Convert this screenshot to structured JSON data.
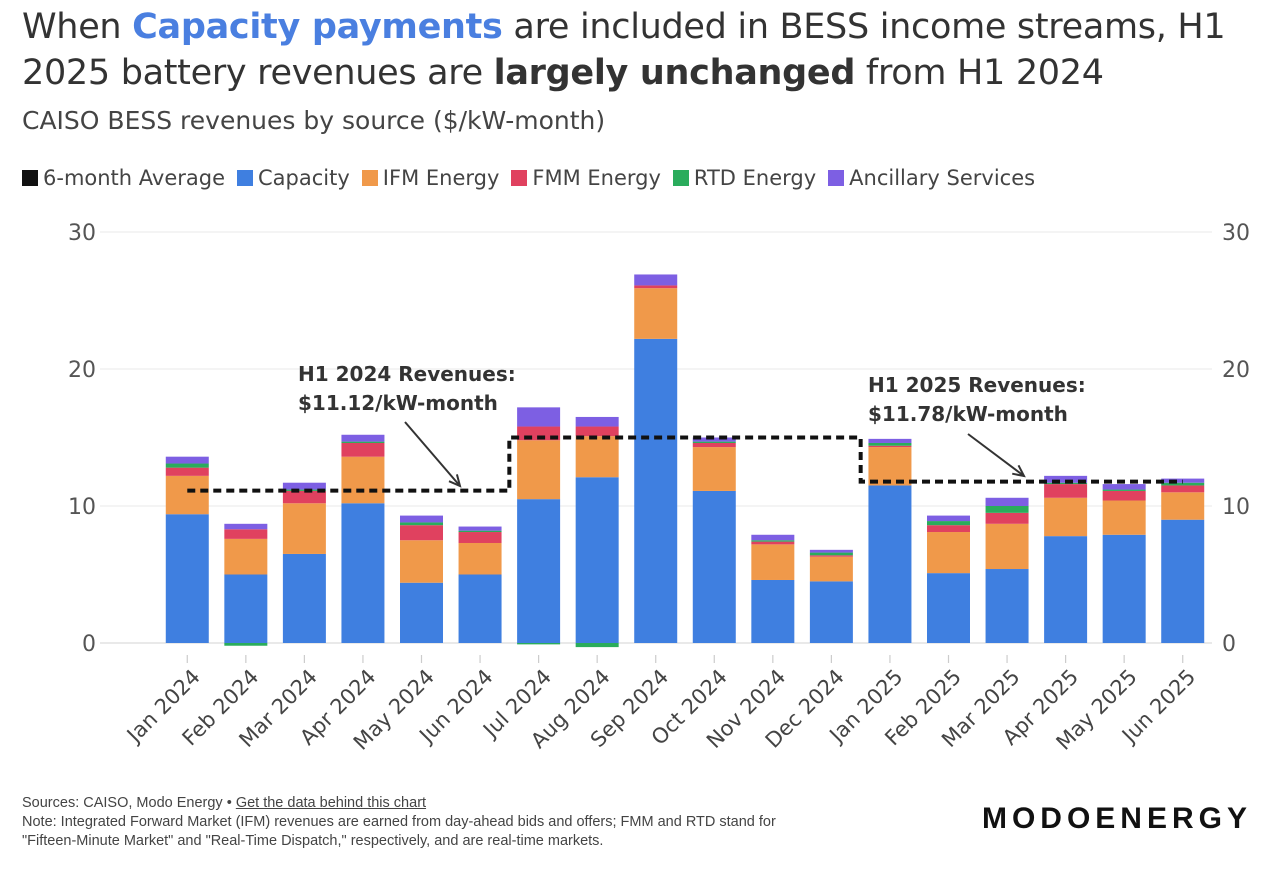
{
  "header": {
    "title_parts": {
      "p1": "When ",
      "p2": "Capacity payments",
      "p3": " are included in BESS income streams, H1 2025 battery revenues are ",
      "p4": "largely unchanged",
      "p5": " from H1 2024"
    },
    "subtitle": "CAISO BESS revenues by source ($/kW-month)"
  },
  "legend": [
    {
      "label": "6-month Average",
      "color": "#111111"
    },
    {
      "label": "Capacity",
      "color": "#3f7fe0"
    },
    {
      "label": "IFM Energy",
      "color": "#f0994a"
    },
    {
      "label": "FMM Energy",
      "color": "#e0415f"
    },
    {
      "label": "RTD Energy",
      "color": "#2aac5c"
    },
    {
      "label": "Ancillary Services",
      "color": "#7d5fe3"
    }
  ],
  "chart_data": {
    "type": "bar",
    "stacked": true,
    "categories": [
      "Jan 2024",
      "Feb 2024",
      "Mar 2024",
      "Apr 2024",
      "May 2024",
      "Jun 2024",
      "Jul 2024",
      "Aug 2024",
      "Sep 2024",
      "Oct 2024",
      "Nov 2024",
      "Dec 2024",
      "Jan 2025",
      "Feb 2025",
      "Mar 2025",
      "Apr 2025",
      "May 2025",
      "Jun 2025"
    ],
    "series": [
      {
        "name": "Capacity",
        "color": "#3f7fe0",
        "values": [
          9.4,
          5.0,
          6.5,
          10.2,
          4.4,
          5.0,
          10.5,
          12.1,
          22.2,
          11.1,
          4.6,
          4.5,
          11.5,
          5.1,
          5.4,
          7.8,
          7.9,
          9.0
        ]
      },
      {
        "name": "IFM Energy",
        "color": "#f0994a",
        "values": [
          2.8,
          2.6,
          3.7,
          3.4,
          3.1,
          2.3,
          4.3,
          3.0,
          3.7,
          3.2,
          2.6,
          1.8,
          2.8,
          3.0,
          3.3,
          2.8,
          2.5,
          2.0
        ]
      },
      {
        "name": "FMM Energy",
        "color": "#e0415f",
        "values": [
          0.6,
          0.7,
          0.9,
          1.0,
          1.1,
          0.8,
          1.0,
          0.7,
          0.2,
          0.3,
          0.2,
          0.1,
          0.1,
          0.5,
          0.8,
          1.0,
          0.7,
          0.5
        ]
      },
      {
        "name": "RTD Energy",
        "color": "#2aac5c",
        "values": [
          0.3,
          -0.2,
          0.1,
          0.1,
          0.2,
          0.1,
          -0.1,
          -0.3,
          0.0,
          0.1,
          0.1,
          0.2,
          0.2,
          0.3,
          0.5,
          0.1,
          0.1,
          0.2
        ]
      },
      {
        "name": "Ancillary Services",
        "color": "#7d5fe3",
        "values": [
          0.5,
          0.4,
          0.5,
          0.5,
          0.5,
          0.3,
          1.4,
          0.7,
          0.8,
          0.3,
          0.4,
          0.2,
          0.3,
          0.4,
          0.6,
          0.5,
          0.4,
          0.3
        ]
      }
    ],
    "average_line": {
      "name": "6-month Average",
      "segments": [
        {
          "from": "Jan 2024",
          "to": "Jun 2024",
          "value": 11.12
        },
        {
          "from": "Jul 2024",
          "to": "Dec 2024",
          "value": 15.0
        },
        {
          "from": "Jan 2025",
          "to": "Jun 2025",
          "value": 11.78
        }
      ]
    },
    "annotations": [
      {
        "line1": "H1 2024 Revenues:",
        "line2": "$11.12/kW-month"
      },
      {
        "line1": "H1 2025 Revenues:",
        "line2": "$11.78/kW-month"
      }
    ],
    "yticks": [
      0,
      10,
      20,
      30
    ],
    "ylim": [
      -0.5,
      30
    ],
    "grid": true,
    "legend_position": "top-left"
  },
  "footer": {
    "sources": "Sources: CAISO, Modo Energy • ",
    "link": "Get the data behind this chart",
    "note1": "Note: Integrated Forward Market (IFM) revenues are earned from day-ahead bids and offers; FMM and RTD stand for",
    "note2": "\"Fifteen-Minute Market\" and \"Real-Time Dispatch,\" respectively, and are real-time markets."
  },
  "brand": "MODOENERGY"
}
